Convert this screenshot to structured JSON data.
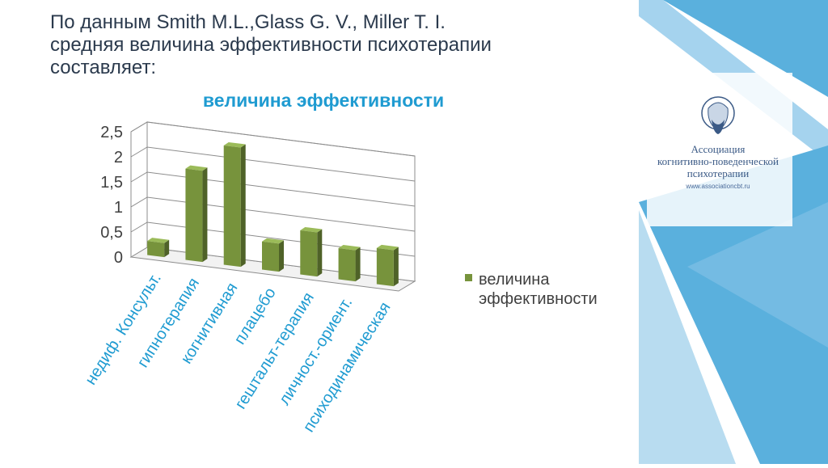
{
  "slide": {
    "title_lines": [
      "По данным Smith M.L.,Glass G. V., Miller T. I.",
      "средняя величина эффективности психотерапии",
      "составляет:"
    ]
  },
  "logo": {
    "line1": "Ассоциация",
    "line2": "когнитивно-поведенческой",
    "line3": "психотерапии",
    "url": "www.associationcbt.ru"
  },
  "colors": {
    "title_text": "#2b3a4d",
    "chart_title": "#1f9bd1",
    "bar_front": "#77933c",
    "bar_side": "#4f6228",
    "bar_top": "#9bbb59",
    "panel_blue": "#5ab0dd",
    "panel_light": "#b8dcf0"
  },
  "chart_data": {
    "type": "bar",
    "title": "величина эффективности",
    "categories": [
      "недиф. Консульт.",
      "гипнотерапия",
      "когнитивная",
      "плацебо",
      "гештальт-терапия",
      "личност.-ориент.",
      "психодинамическая"
    ],
    "series": [
      {
        "name": "величина эффективности",
        "values": [
          0.28,
          1.82,
          2.38,
          0.56,
          0.88,
          0.62,
          0.72
        ]
      }
    ],
    "ylim": [
      0,
      2.5
    ],
    "y_ticks": [
      "0",
      "0,5",
      "1",
      "1,5",
      "2",
      "2,5"
    ],
    "grid": true,
    "three_d": true,
    "legend_position": "right"
  }
}
